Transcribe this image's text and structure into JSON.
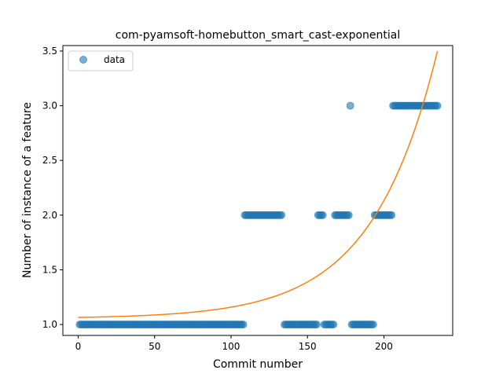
{
  "chart_data": {
    "type": "scatter",
    "title": "com-pyamsoft-homebutton_smart_cast-exponential",
    "xlabel": "Commit number",
    "ylabel": "Number of instance of a feature",
    "xlim": [
      -10,
      245
    ],
    "ylim": [
      0.9,
      3.55
    ],
    "xticks": [
      0,
      50,
      100,
      150,
      200
    ],
    "yticks": [
      1.0,
      1.5,
      2.0,
      2.5,
      3.0,
      3.5
    ],
    "xtick_labels": [
      "0",
      "50",
      "100",
      "150",
      "200"
    ],
    "ytick_labels": [
      "1.0",
      "1.5",
      "2.0",
      "2.5",
      "3.0",
      "3.5"
    ],
    "legend": {
      "location": "top-left",
      "entries": [
        {
          "label": "data",
          "series": "data"
        }
      ]
    },
    "series": [
      {
        "name": "data",
        "kind": "scatter",
        "color": "#1f77b4",
        "segments": [
          {
            "y": 1.0,
            "x_start": 1,
            "x_end": 108
          },
          {
            "y": 2.0,
            "x_start": 109,
            "x_end": 133
          },
          {
            "y": 1.0,
            "x_start": 135,
            "x_end": 156
          },
          {
            "y": 2.0,
            "x_start": 157,
            "x_end": 160
          },
          {
            "y": 1.0,
            "x_start": 161,
            "x_end": 167
          },
          {
            "y": 2.0,
            "x_start": 168,
            "x_end": 177
          },
          {
            "y": 3.0,
            "x_start": 178,
            "x_end": 178
          },
          {
            "y": 1.0,
            "x_start": 179,
            "x_end": 193
          },
          {
            "y": 2.0,
            "x_start": 194,
            "x_end": 205
          },
          {
            "y": 3.0,
            "x_start": 206,
            "x_end": 235
          }
        ]
      },
      {
        "name": "exponential fit",
        "kind": "line",
        "color": "#ff7f0e",
        "model": "y = a + b * exp(c * x)",
        "params": {
          "a": 1.0548,
          "b": 0.01,
          "c": 0.0234
        },
        "x_range": [
          0,
          235
        ]
      }
    ]
  }
}
